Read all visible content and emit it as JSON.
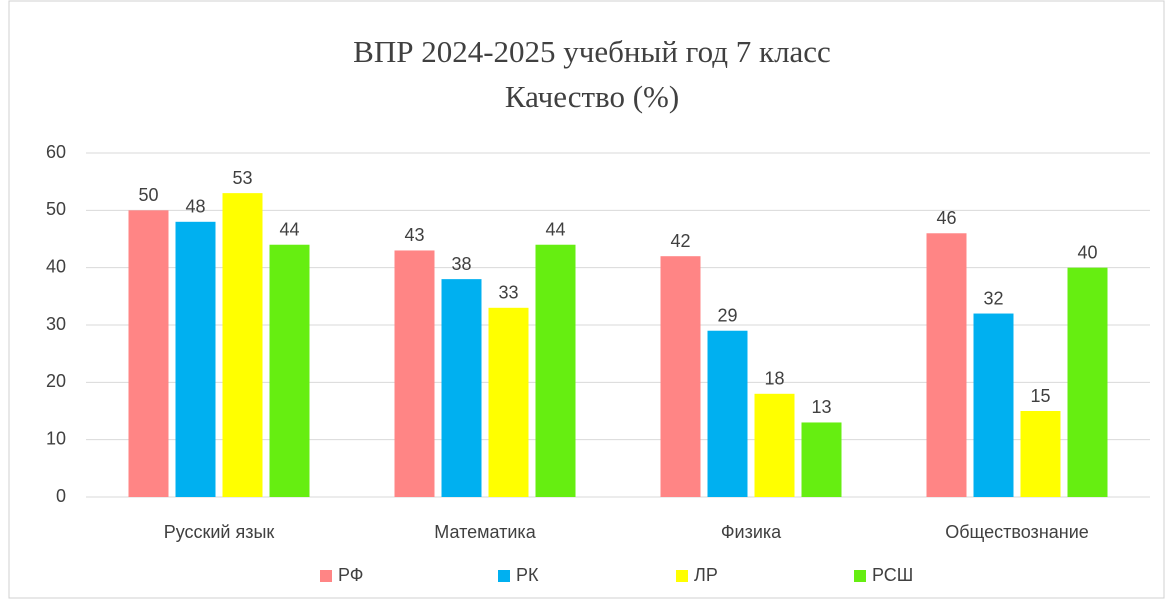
{
  "chart_data": {
    "type": "bar",
    "title": "ВПР 2024-2025 учебный год 7 класс",
    "subtitle": "Качество (%)",
    "categories": [
      "Русский язык",
      "Математика",
      "Физика",
      "Обществознание"
    ],
    "series": [
      {
        "name": "РФ",
        "color": "#ff8585",
        "values": [
          50,
          43,
          42,
          46
        ]
      },
      {
        "name": "РК",
        "color": "#00b0f0",
        "values": [
          48,
          38,
          29,
          32
        ]
      },
      {
        "name": "ЛР",
        "color": "#ffff00",
        "values": [
          53,
          33,
          18,
          15
        ]
      },
      {
        "name": "РСШ",
        "color": "#66ee11",
        "values": [
          44,
          44,
          13,
          40
        ]
      }
    ],
    "ylim": [
      0,
      60
    ],
    "yticks": [
      0,
      10,
      20,
      30,
      40,
      50,
      60
    ],
    "grid": true,
    "legend": "bottom"
  }
}
